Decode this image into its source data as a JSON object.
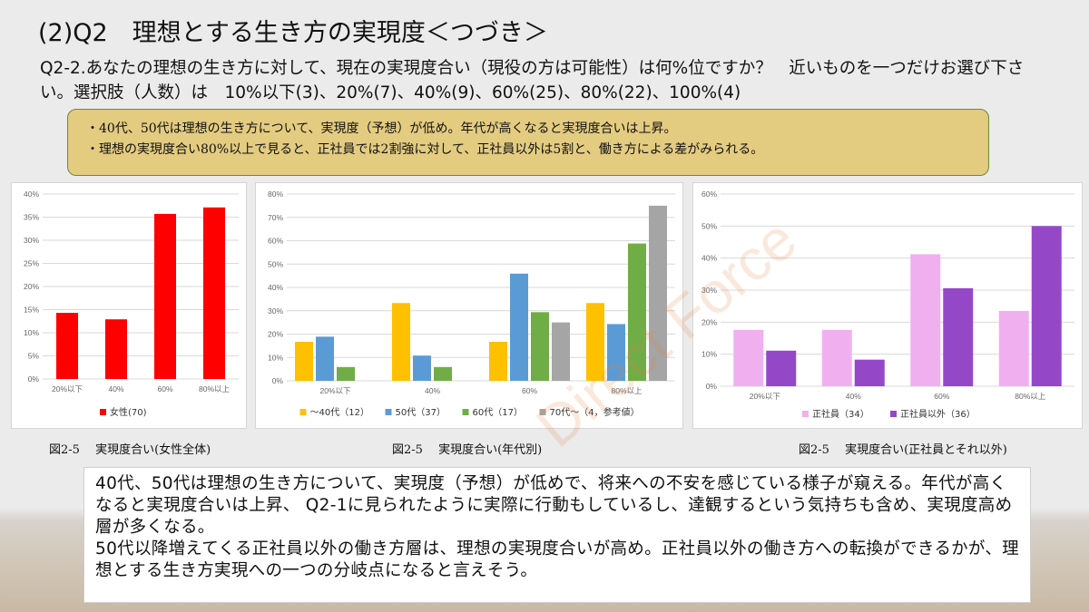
{
  "title": "(2)Q2　理想とする生き方の実現度＜つづき＞",
  "question": "Q2-2.あなたの理想の生き方に対して、現在の実現度合い（現役の方は可能性）は何%位ですか？　近いものを一つだけお選び下さい。選択肢（人数）は　10%以下(3)、20%(7)、40%(9)、60%(25)、80%(22)、100%(4)",
  "summary": [
    "・40代、50代は理想の生き方について、実現度（予想）が低め。年代が高くなると実現度合いは上昇。",
    "・理想の実現度合い80%以上で見ると、正社員では2割強に対して、正社員以外は5割と、働き方による差がみられる。"
  ],
  "watermark": "Direct Force",
  "captions": [
    "図2-5　 実現度合い(女性全体)",
    "図2-5　 実現度合い(年代別)",
    "図2-5　 実現度合い(正社員とそれ以外)"
  ],
  "comment": [
    "40代、50代は理想の生き方について、実現度（予想）が低めで、将来への不安を感じている様子が窺える。年代が高くなると実現度合いは上昇、 Q2-1に見られたように実際に行動もしているし、達観するという気持ちも含め、実現度高め層が多くなる。",
    "50代以降増えてくる正社員以外の働き方層は、理想の実現度合いが高め。正社員以外の働き方への転換ができるかが、理想とする生き方実現への一つの分岐点になると言えそう。"
  ],
  "chart_data": [
    {
      "type": "bar",
      "categories": [
        "20%以下",
        "40%",
        "60%",
        "80%以上"
      ],
      "series": [
        {
          "name": "女性(70)",
          "color": "#ff0000",
          "values": [
            14.3,
            12.9,
            35.7,
            37.1
          ]
        }
      ],
      "yticks": [
        "0%",
        "5%",
        "10%",
        "15%",
        "20%",
        "25%",
        "30%",
        "35%",
        "40%"
      ],
      "ylim": [
        0,
        40
      ],
      "legend": "bottom",
      "grid": true
    },
    {
      "type": "bar",
      "categories": [
        "20%以下",
        "40%",
        "60%",
        "80%以上"
      ],
      "series": [
        {
          "name": "～40代（12）",
          "color": "#ffc000",
          "values": [
            16.7,
            33.3,
            16.7,
            33.3
          ]
        },
        {
          "name": "50代（37）",
          "color": "#5b9bd5",
          "values": [
            18.9,
            10.8,
            45.9,
            24.3
          ]
        },
        {
          "name": "60代（17）",
          "color": "#70ad47",
          "values": [
            5.9,
            5.9,
            29.4,
            58.8
          ]
        },
        {
          "name": "70代～（4，参考値）",
          "color": "#a5a5a5",
          "values": [
            0,
            0,
            25,
            75
          ]
        }
      ],
      "yticks": [
        "0%",
        "10%",
        "20%",
        "30%",
        "40%",
        "50%",
        "60%",
        "70%",
        "80%"
      ],
      "ylim": [
        0,
        80
      ],
      "legend": "bottom",
      "grid": true
    },
    {
      "type": "bar",
      "categories": [
        "20%以下",
        "40%",
        "60%",
        "80%以上"
      ],
      "series": [
        {
          "name": "正社員（34）",
          "color": "#f0b0f0",
          "values": [
            17.6,
            17.6,
            41.2,
            23.5
          ]
        },
        {
          "name": "正社員以外（36）",
          "color": "#9448c8",
          "values": [
            11.1,
            8.3,
            30.6,
            50.0
          ]
        }
      ],
      "yticks": [
        "0%",
        "10%",
        "20%",
        "30%",
        "40%",
        "50%",
        "60%"
      ],
      "ylim": [
        0,
        60
      ],
      "legend": "bottom",
      "grid": true
    }
  ]
}
